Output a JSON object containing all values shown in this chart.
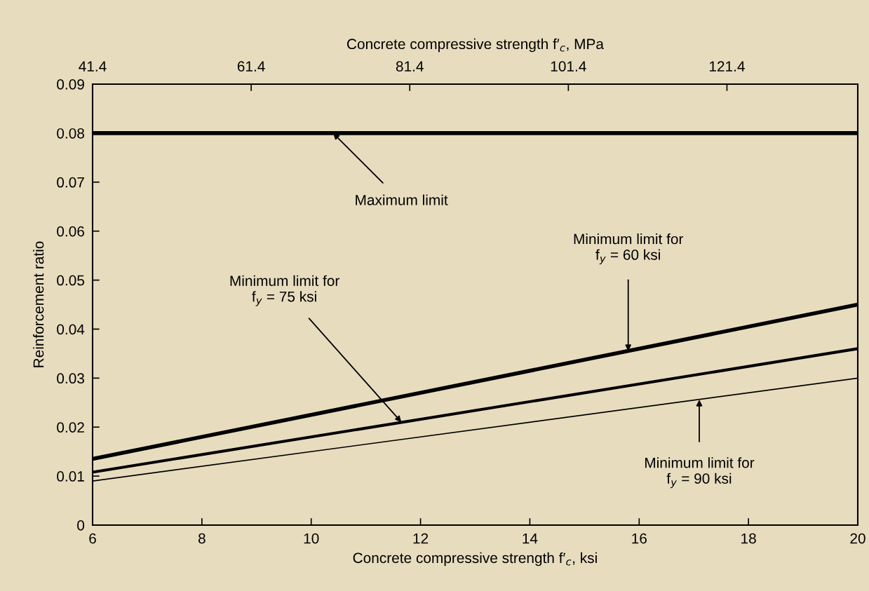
{
  "chart_data": {
    "type": "line",
    "xlabel": "Concrete compressive strength f′$_{c}$, ksi",
    "x2label": "Concrete compressive strength f′$_{c}$, MPa",
    "ylabel": "Reinforcement ratio",
    "x": [
      6,
      20
    ],
    "series": [
      {
        "color": "#000000",
        "values": [
          0.08,
          0.08
        ]
      },
      {
        "color": "#000000",
        "values": [
          0.0135,
          0.045
        ]
      },
      {
        "color": "#000000",
        "values": [
          0.0108,
          0.036
        ]
      },
      {
        "color": "#000000",
        "values": [
          0.009,
          0.03
        ]
      }
    ],
    "xlim": [
      6,
      20
    ],
    "xticks": [
      6,
      8,
      10,
      12,
      14,
      16,
      18,
      20
    ],
    "x2lim": [
      41.4,
      137.9
    ],
    "x2ticks": [
      41.4,
      61.4,
      81.4,
      101.4,
      121.4
    ],
    "ylim": [
      0,
      0.09
    ],
    "yticks": [
      0,
      0.01,
      0.02,
      0.03,
      0.04,
      0.05,
      0.06,
      0.07,
      0.08,
      0.09
    ],
    "grid": false,
    "marker": "none",
    "line_style": "solid",
    "annotations": [
      {
        "text": "Maximum limit",
        "x": 10.4,
        "y": 0.08
      },
      {
        "text": "Minimum limit for\nf$_{y}$ = 60 ksi",
        "x": 15.8,
        "y": 0.0355
      },
      {
        "text": "Minimum limit for\nf$_{y}$ = 75 ksi",
        "x": 11.65,
        "y": 0.021
      },
      {
        "text": "Minimum limit for\nf$_{y}$ = 90 ksi",
        "x": 17.1,
        "y": 0.0256
      }
    ]
  }
}
